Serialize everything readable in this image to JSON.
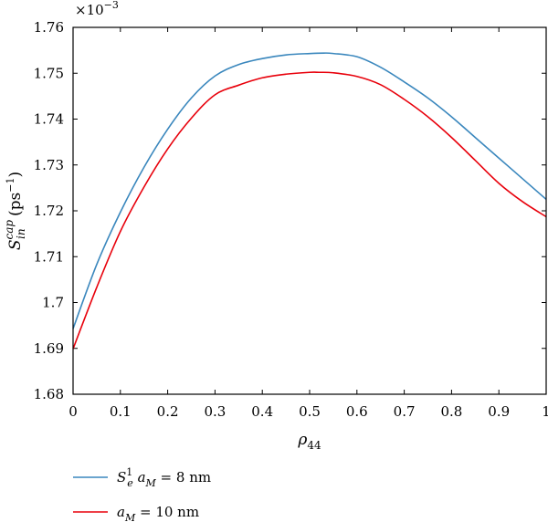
{
  "chart_data": {
    "type": "line",
    "title": "",
    "xlabel": "ρ",
    "xlabel_sub": "44",
    "ylabel": "S",
    "ylabel_sup": "cap",
    "ylabel_sub": "in",
    "ylabel_unit_open": " (ps",
    "ylabel_unit_sup": "−1",
    "ylabel_unit_close": ")",
    "y_multiplier_base": "×10",
    "y_multiplier_exp": "−3",
    "xlim": [
      0,
      1
    ],
    "ylim": [
      1.68,
      1.76
    ],
    "xticks": [
      0,
      0.1,
      0.2,
      0.3,
      0.4,
      0.5,
      0.6,
      0.7,
      0.8,
      0.9,
      1
    ],
    "xtick_labels": [
      "0",
      "0.1",
      "0.2",
      "0.3",
      "0.4",
      "0.5",
      "0.6",
      "0.7",
      "0.8",
      "0.9",
      "1"
    ],
    "yticks": [
      1.68,
      1.69,
      1.7,
      1.71,
      1.72,
      1.73,
      1.74,
      1.75,
      1.76
    ],
    "ytick_labels": [
      "1.68",
      "1.69",
      "1.7",
      "1.71",
      "1.72",
      "1.73",
      "1.74",
      "1.75",
      "1.76"
    ],
    "grid": false,
    "legend_position": "bottom-left, below plot",
    "series": [
      {
        "name": "S_e^1 a_M = 8 nm",
        "legend": {
          "s": "S",
          "s_sub": "e",
          "s_sup": "1",
          "a": " a",
          "a_sub": "M",
          "rest": " = 8 nm"
        },
        "color": "#3a87bd",
        "x": [
          0,
          0.05,
          0.1,
          0.15,
          0.2,
          0.25,
          0.3,
          0.35,
          0.4,
          0.45,
          0.5,
          0.53,
          0.55,
          0.6,
          0.65,
          0.7,
          0.75,
          0.8,
          0.85,
          0.9,
          0.95,
          1
        ],
        "y": [
          1.6943,
          1.7083,
          1.7197,
          1.7295,
          1.7378,
          1.7446,
          1.7494,
          1.7519,
          1.7532,
          1.754,
          1.7543,
          1.7544,
          1.7543,
          1.7536,
          1.7513,
          1.7481,
          1.7446,
          1.7405,
          1.736,
          1.7315,
          1.727,
          1.7225
        ]
      },
      {
        "name": "a_M = 10 nm",
        "legend": {
          "s": "",
          "s_sub": "",
          "s_sup": "",
          "a": "a",
          "a_sub": "M",
          "rest": " = 10 nm"
        },
        "color": "#e8000b",
        "x": [
          0,
          0.05,
          0.1,
          0.15,
          0.2,
          0.25,
          0.3,
          0.35,
          0.4,
          0.45,
          0.5,
          0.52,
          0.55,
          0.6,
          0.65,
          0.7,
          0.75,
          0.8,
          0.85,
          0.9,
          0.95,
          1
        ],
        "y": [
          1.6899,
          1.7033,
          1.7155,
          1.7252,
          1.7335,
          1.7402,
          1.7453,
          1.7474,
          1.749,
          1.7498,
          1.7502,
          1.7502,
          1.7501,
          1.7493,
          1.7475,
          1.7443,
          1.7405,
          1.736,
          1.731,
          1.726,
          1.722,
          1.7187
        ]
      }
    ]
  }
}
